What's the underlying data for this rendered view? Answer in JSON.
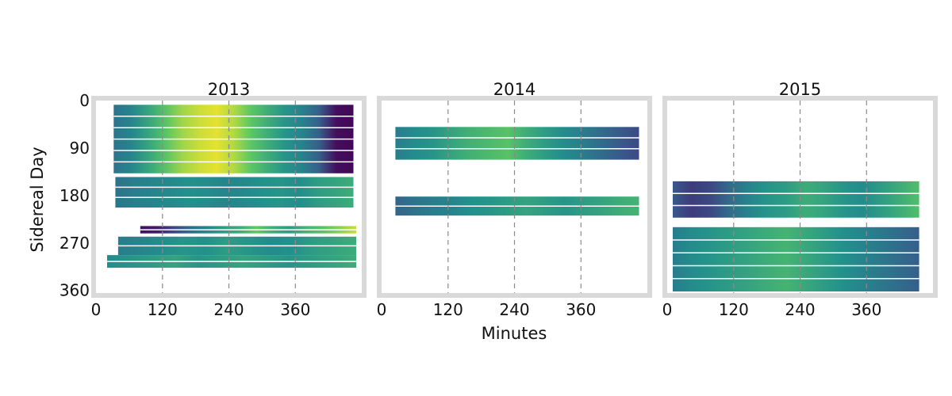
{
  "chart_data": {
    "type": "heatmap",
    "xlabel": "Minutes",
    "ylabel": "Sidereal Day",
    "xlim": [
      0,
      480
    ],
    "ylim": [
      0,
      365
    ],
    "xticks": [
      0,
      120,
      240,
      360
    ],
    "yticks": [
      0,
      90,
      180,
      270,
      360
    ],
    "x_gridlines": [
      120,
      240,
      360
    ],
    "colormap": [
      "#440154",
      "#3b528b",
      "#21918c",
      "#5ec962",
      "#fde725"
    ],
    "panels": [
      {
        "title": "2013",
        "bands": [
          {
            "day_start": 8,
            "day_end": 138,
            "minute_start": 32,
            "minute_end": 465,
            "values": [
              0.38,
              0.45,
              0.58,
              0.72,
              0.85,
              0.92,
              0.96,
              0.88,
              0.74,
              0.62,
              0.52,
              0.44,
              0.3,
              0.04,
              0.02
            ]
          },
          {
            "day_start": 145,
            "day_end": 203,
            "minute_start": 35,
            "minute_end": 465,
            "values": [
              0.38,
              0.42,
              0.45,
              0.47,
              0.5,
              0.48,
              0.45,
              0.47,
              0.5,
              0.52,
              0.48,
              0.55,
              0.58,
              0.62
            ]
          },
          {
            "day_start": 238,
            "day_end": 252,
            "minute_start": 80,
            "minute_end": 470,
            "values": [
              0.05,
              0.08,
              0.22,
              0.35,
              0.45,
              0.55,
              0.62,
              0.75,
              0.62,
              0.55,
              0.65,
              0.72,
              0.82,
              0.92
            ]
          },
          {
            "day_start": 258,
            "day_end": 293,
            "minute_start": 40,
            "minute_end": 470,
            "values": [
              0.42,
              0.45,
              0.48,
              0.52,
              0.5,
              0.55,
              0.52,
              0.48,
              0.5,
              0.55,
              0.58,
              0.62
            ]
          },
          {
            "day_start": 293,
            "day_end": 317,
            "minute_start": 20,
            "minute_end": 470,
            "values": [
              0.48,
              0.52,
              0.55,
              0.58,
              0.52,
              0.55,
              0.58,
              0.55,
              0.52,
              0.55,
              0.58,
              0.62
            ]
          }
        ]
      },
      {
        "title": "2014",
        "bands": [
          {
            "day_start": 50,
            "day_end": 112,
            "minute_start": 25,
            "minute_end": 465,
            "values": [
              0.42,
              0.48,
              0.52,
              0.58,
              0.64,
              0.68,
              0.72,
              0.62,
              0.55,
              0.48,
              0.42,
              0.35,
              0.28,
              0.22
            ]
          },
          {
            "day_start": 182,
            "day_end": 218,
            "minute_start": 25,
            "minute_end": 465,
            "values": [
              0.32,
              0.38,
              0.42,
              0.45,
              0.5,
              0.52,
              0.55,
              0.58,
              0.55,
              0.52,
              0.55,
              0.58,
              0.62,
              0.65
            ]
          }
        ]
      },
      {
        "title": "2015",
        "bands": [
          {
            "day_start": 153,
            "day_end": 222,
            "minute_start": 10,
            "minute_end": 455,
            "values": [
              0.28,
              0.18,
              0.22,
              0.35,
              0.45,
              0.52,
              0.55,
              0.62,
              0.58,
              0.52,
              0.48,
              0.55,
              0.62,
              0.7
            ]
          },
          {
            "day_start": 240,
            "day_end": 362,
            "minute_start": 10,
            "minute_end": 455,
            "values": [
              0.42,
              0.48,
              0.52,
              0.55,
              0.58,
              0.62,
              0.65,
              0.6,
              0.55,
              0.5,
              0.45,
              0.4,
              0.35,
              0.3
            ]
          }
        ]
      }
    ]
  }
}
